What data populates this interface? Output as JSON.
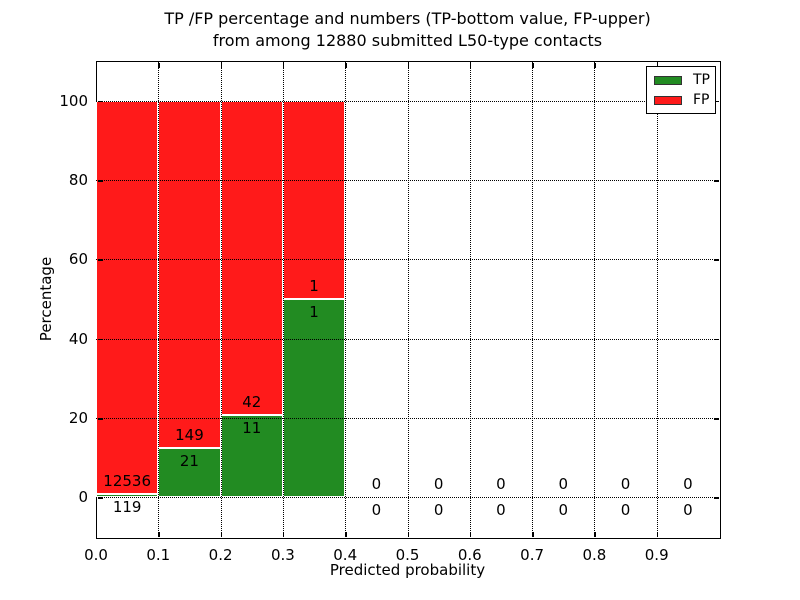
{
  "figure": {
    "title_line1": "TP /FP percentage and numbers (TP-bottom value, FP-upper)",
    "title_line2": "from among 12880 submitted L50-type contacts"
  },
  "chart_data": {
    "type": "bar",
    "stacked": true,
    "title": "TP /FP percentage and numbers (TP-bottom value, FP-upper) from among 12880 submitted L50-type contacts",
    "xlabel": "Predicted probability",
    "ylabel": "Percentage",
    "xlim": [
      0.0,
      1.0
    ],
    "ylim": [
      -10,
      110
    ],
    "xticks": [
      0.0,
      0.1,
      0.2,
      0.3,
      0.4,
      0.5,
      0.6,
      0.7,
      0.8,
      0.9
    ],
    "yticks": [
      0,
      20,
      40,
      60,
      80,
      100
    ],
    "grid": true,
    "total_submitted": 12880,
    "bin_edges": [
      0.0,
      0.1,
      0.2,
      0.3,
      0.4,
      0.5,
      0.6,
      0.7,
      0.8,
      0.9,
      1.0
    ],
    "series": [
      {
        "name": "TP",
        "counts": [
          119,
          21,
          11,
          1,
          0,
          0,
          0,
          0,
          0,
          0
        ],
        "percentages": [
          0.94,
          12.35,
          20.75,
          50.0,
          0,
          0,
          0,
          0,
          0,
          0
        ]
      },
      {
        "name": "FP",
        "counts": [
          12536,
          149,
          42,
          1,
          0,
          0,
          0,
          0,
          0,
          0
        ],
        "percentages": [
          99.06,
          87.65,
          79.25,
          50.0,
          0,
          0,
          0,
          0,
          0,
          0
        ]
      }
    ],
    "legend": {
      "position": "upper right",
      "entries": [
        {
          "label": "TP",
          "color": "#228b22"
        },
        {
          "label": "FP",
          "color": "#ff1a1a"
        }
      ]
    }
  },
  "colors": {
    "tp": "#228b22",
    "fp": "#ff1a1a",
    "grid": "#000000",
    "axes": "#000000",
    "background": "#ffffff"
  }
}
